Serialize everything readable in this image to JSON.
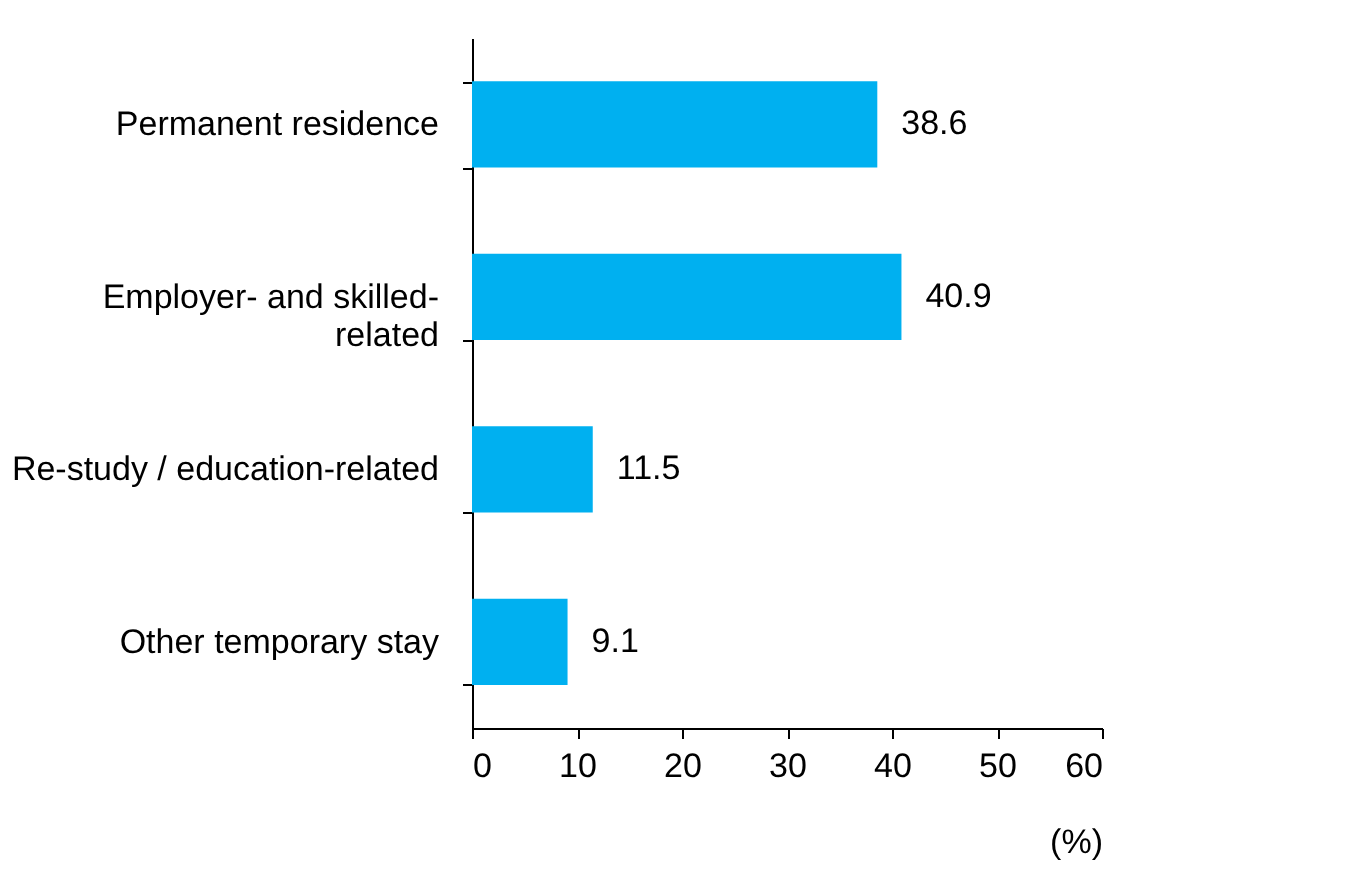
{
  "chart_data": {
    "type": "bar",
    "orientation": "horizontal",
    "categories": [
      "Permanent residence",
      "Employer- and skilled-\nrelated",
      "Re-study / education-related",
      "Other temporary stay"
    ],
    "values": [
      38.6,
      40.9,
      11.5,
      9.1
    ],
    "color": "#00b0f0",
    "xlim": [
      0,
      60
    ],
    "xticks": [
      0,
      10,
      20,
      30,
      40,
      50,
      60
    ],
    "xlabel": "(%)",
    "data_labels": true,
    "grid": false
  }
}
